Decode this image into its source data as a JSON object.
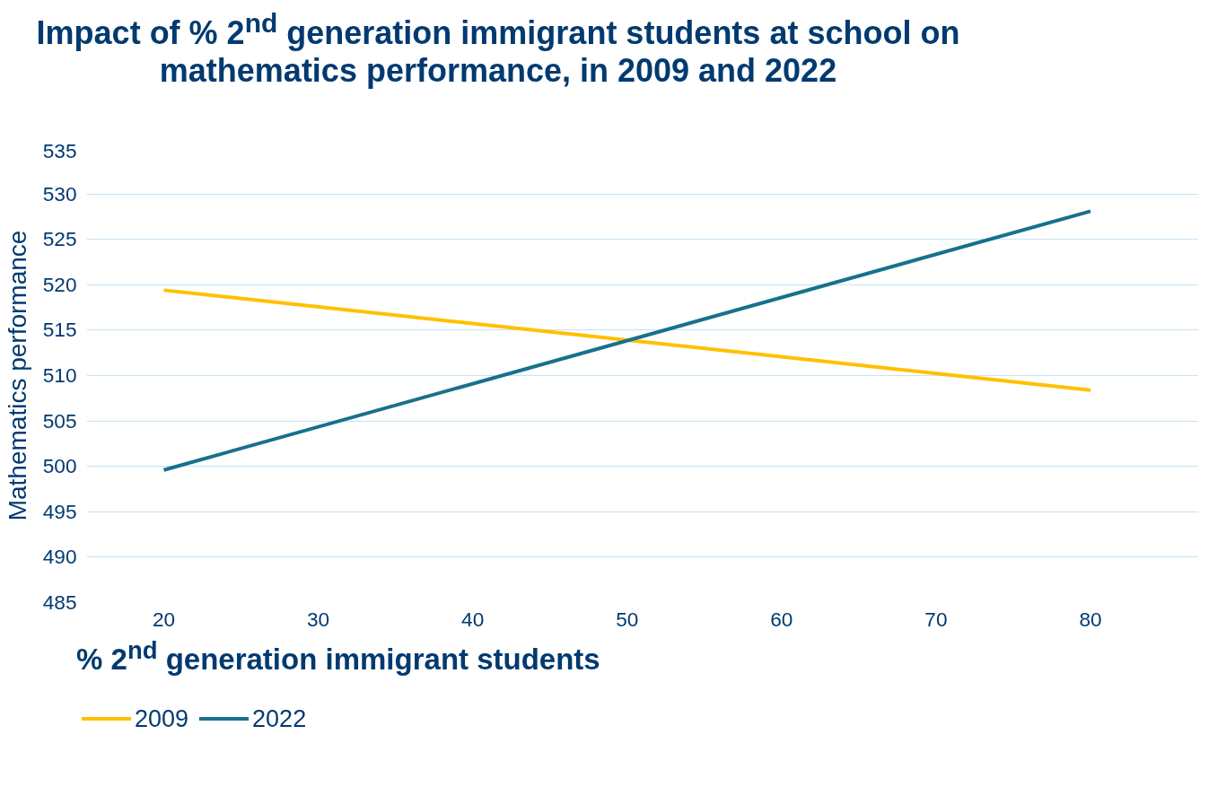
{
  "chart_data": {
    "type": "line",
    "title": "Impact of % 2$^{nd}$  generation immigrant students at school on mathematics performance, in 2009 and 2022",
    "xlabel": "% 2$^{nd}$ generation immigrant students",
    "ylabel": "Mathematics performance",
    "x": [
      20,
      80
    ],
    "series": [
      {
        "name": "2009",
        "color": "#ffc000",
        "values": [
          519.4,
          508.4
        ]
      },
      {
        "name": "2022",
        "color": "#17718c",
        "values": [
          499.6,
          528.1
        ]
      }
    ],
    "xlim": [
      15,
      87
    ],
    "xticks": [
      20,
      30,
      40,
      50,
      60,
      70,
      80
    ],
    "ylim": [
      485,
      535
    ],
    "yticks": [
      485,
      490,
      495,
      500,
      505,
      510,
      515,
      520,
      525,
      530,
      535
    ],
    "grid": "y",
    "legend": "bottom",
    "marker": "none",
    "line_style": "solid"
  }
}
